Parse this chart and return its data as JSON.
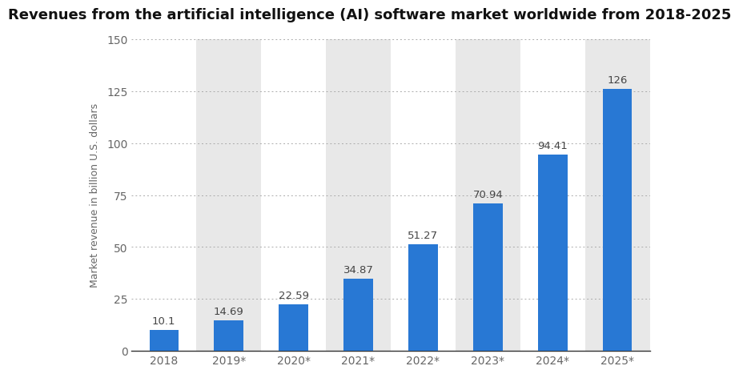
{
  "title": "Revenues from the artificial intelligence (AI) software market worldwide from 2018-2025",
  "categories": [
    "2018",
    "2019*",
    "2020*",
    "2021*",
    "2022*",
    "2023*",
    "2024*",
    "2025*"
  ],
  "values": [
    10.1,
    14.69,
    22.59,
    34.87,
    51.27,
    70.94,
    94.41,
    126
  ],
  "bar_color": "#2878d4",
  "ylabel": "Market revenue in billion U.S. dollars",
  "ylim": [
    0,
    150
  ],
  "yticks": [
    0,
    25,
    50,
    75,
    100,
    125,
    150
  ],
  "background_color": "#ffffff",
  "plot_bg_even": "#ffffff",
  "plot_bg_odd": "#e8e8e8",
  "grid_color": "#aaaaaa",
  "title_fontsize": 13,
  "label_fontsize": 9,
  "tick_fontsize": 10,
  "bar_label_fontsize": 9.5,
  "bar_width": 0.45
}
